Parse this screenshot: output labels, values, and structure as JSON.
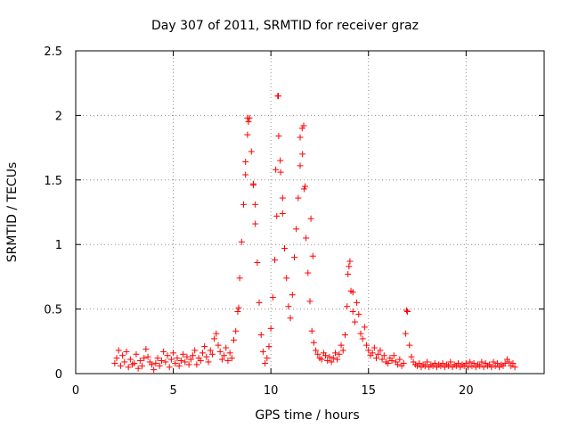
{
  "chart_data": {
    "type": "scatter",
    "title": "Day 307 of 2011, SRMTID for receiver graz",
    "xlabel": "GPS time / hours",
    "ylabel": "SRMTID / TECUs",
    "xlim": [
      0,
      24
    ],
    "ylim": [
      0,
      2.5
    ],
    "grid": true,
    "x_ticks": [
      0,
      5,
      10,
      15,
      20
    ],
    "y_ticks": [
      0,
      0.5,
      1,
      1.5,
      2,
      2.5
    ],
    "x_tick_labels": [
      "0",
      "5",
      "10",
      "15",
      "20"
    ],
    "y_tick_labels": [
      "0",
      "0.5",
      "1",
      "1.5",
      "2",
      "2.5"
    ],
    "marker": "+",
    "series": [
      {
        "name": "SRMTID",
        "color": "#ff0000",
        "points": [
          [
            2.0,
            0.08
          ],
          [
            2.1,
            0.12
          ],
          [
            2.2,
            0.18
          ],
          [
            2.3,
            0.06
          ],
          [
            2.4,
            0.14
          ],
          [
            2.5,
            0.09
          ],
          [
            2.6,
            0.17
          ],
          [
            2.7,
            0.05
          ],
          [
            2.8,
            0.11
          ],
          [
            2.9,
            0.07
          ],
          [
            3.0,
            0.08
          ],
          [
            3.1,
            0.15
          ],
          [
            3.2,
            0.04
          ],
          [
            3.3,
            0.1
          ],
          [
            3.4,
            0.06
          ],
          [
            3.5,
            0.12
          ],
          [
            3.6,
            0.19
          ],
          [
            3.7,
            0.13
          ],
          [
            3.8,
            0.09
          ],
          [
            3.9,
            0.07
          ],
          [
            4.0,
            0.03
          ],
          [
            4.1,
            0.08
          ],
          [
            4.2,
            0.12
          ],
          [
            4.3,
            0.06
          ],
          [
            4.4,
            0.1
          ],
          [
            4.5,
            0.17
          ],
          [
            4.6,
            0.09
          ],
          [
            4.7,
            0.14
          ],
          [
            4.8,
            0.05
          ],
          [
            4.9,
            0.11
          ],
          [
            5.0,
            0.16
          ],
          [
            5.1,
            0.08
          ],
          [
            5.2,
            0.12
          ],
          [
            5.3,
            0.06
          ],
          [
            5.4,
            0.1
          ],
          [
            5.5,
            0.15
          ],
          [
            5.6,
            0.09
          ],
          [
            5.7,
            0.13
          ],
          [
            5.8,
            0.07
          ],
          [
            5.9,
            0.11
          ],
          [
            6.0,
            0.14
          ],
          [
            6.1,
            0.18
          ],
          [
            6.2,
            0.07
          ],
          [
            6.3,
            0.12
          ],
          [
            6.4,
            0.1
          ],
          [
            6.5,
            0.16
          ],
          [
            6.6,
            0.21
          ],
          [
            6.7,
            0.13
          ],
          [
            6.8,
            0.09
          ],
          [
            6.9,
            0.18
          ],
          [
            7.0,
            0.15
          ],
          [
            7.1,
            0.27
          ],
          [
            7.2,
            0.31
          ],
          [
            7.3,
            0.22
          ],
          [
            7.4,
            0.17
          ],
          [
            7.5,
            0.11
          ],
          [
            7.6,
            0.14
          ],
          [
            7.7,
            0.2
          ],
          [
            7.8,
            0.1
          ],
          [
            7.9,
            0.16
          ],
          [
            8.0,
            0.12
          ],
          [
            8.1,
            0.26
          ],
          [
            8.2,
            0.33
          ],
          [
            8.3,
            0.48
          ],
          [
            8.4,
            0.74
          ],
          [
            8.5,
            1.02
          ],
          [
            8.6,
            1.31
          ],
          [
            8.7,
            1.54
          ],
          [
            8.8,
            1.85
          ],
          [
            8.9,
            1.98
          ],
          [
            9.0,
            1.72
          ],
          [
            9.1,
            1.46
          ],
          [
            9.2,
            1.16
          ],
          [
            9.3,
            0.86
          ],
          [
            9.4,
            0.55
          ],
          [
            9.5,
            0.3
          ],
          [
            9.6,
            0.17
          ],
          [
            9.7,
            0.08
          ],
          [
            9.8,
            0.12
          ],
          [
            9.9,
            0.21
          ],
          [
            10.0,
            0.35
          ],
          [
            10.1,
            0.59
          ],
          [
            10.2,
            0.88
          ],
          [
            10.3,
            1.22
          ],
          [
            10.35,
            2.15
          ],
          [
            10.4,
            1.84
          ],
          [
            10.5,
            1.56
          ],
          [
            10.6,
            1.24
          ],
          [
            10.7,
            0.97
          ],
          [
            10.8,
            0.74
          ],
          [
            10.9,
            0.52
          ],
          [
            11.0,
            0.43
          ],
          [
            11.1,
            0.61
          ],
          [
            11.2,
            0.9
          ],
          [
            11.3,
            1.12
          ],
          [
            11.4,
            1.36
          ],
          [
            11.5,
            1.61
          ],
          [
            11.6,
            1.9
          ],
          [
            11.7,
            1.43
          ],
          [
            11.8,
            1.05
          ],
          [
            11.9,
            0.78
          ],
          [
            12.0,
            0.56
          ],
          [
            12.1,
            0.33
          ],
          [
            12.2,
            0.24
          ],
          [
            12.3,
            0.18
          ],
          [
            12.4,
            0.15
          ],
          [
            12.5,
            0.12
          ],
          [
            12.6,
            0.11
          ],
          [
            12.7,
            0.16
          ],
          [
            12.8,
            0.14
          ],
          [
            12.9,
            0.1
          ],
          [
            13.0,
            0.13
          ],
          [
            13.1,
            0.09
          ],
          [
            13.2,
            0.12
          ],
          [
            13.3,
            0.16
          ],
          [
            13.4,
            0.11
          ],
          [
            13.5,
            0.15
          ],
          [
            13.6,
            0.22
          ],
          [
            13.7,
            0.18
          ],
          [
            13.8,
            0.3
          ],
          [
            13.9,
            0.52
          ],
          [
            14.0,
            0.83
          ],
          [
            14.1,
            0.64
          ],
          [
            14.2,
            0.48
          ],
          [
            14.3,
            0.4
          ],
          [
            14.4,
            0.55
          ],
          [
            14.5,
            0.46
          ],
          [
            14.6,
            0.31
          ],
          [
            14.7,
            0.27
          ],
          [
            14.8,
            0.36
          ],
          [
            14.9,
            0.22
          ],
          [
            15.0,
            0.18
          ],
          [
            15.1,
            0.14
          ],
          [
            15.2,
            0.16
          ],
          [
            15.3,
            0.2
          ],
          [
            15.4,
            0.12
          ],
          [
            15.5,
            0.15
          ],
          [
            15.6,
            0.18
          ],
          [
            15.7,
            0.11
          ],
          [
            15.8,
            0.14
          ],
          [
            15.9,
            0.09
          ],
          [
            16.0,
            0.08
          ],
          [
            16.1,
            0.12
          ],
          [
            16.2,
            0.1
          ],
          [
            16.3,
            0.14
          ],
          [
            16.4,
            0.09
          ],
          [
            16.5,
            0.07
          ],
          [
            16.6,
            0.11
          ],
          [
            16.7,
            0.06
          ],
          [
            16.8,
            0.08
          ],
          [
            16.9,
            0.31
          ],
          [
            17.0,
            0.48
          ],
          [
            17.1,
            0.22
          ],
          [
            17.2,
            0.13
          ],
          [
            17.3,
            0.09
          ],
          [
            17.4,
            0.07
          ],
          [
            17.5,
            0.06
          ],
          [
            17.6,
            0.08
          ],
          [
            17.7,
            0.05
          ],
          [
            17.8,
            0.07
          ],
          [
            17.9,
            0.06
          ],
          [
            18.0,
            0.09
          ],
          [
            18.1,
            0.05
          ],
          [
            18.2,
            0.07
          ],
          [
            18.3,
            0.06
          ],
          [
            18.4,
            0.08
          ],
          [
            18.5,
            0.05
          ],
          [
            18.6,
            0.07
          ],
          [
            18.7,
            0.06
          ],
          [
            18.8,
            0.08
          ],
          [
            18.9,
            0.05
          ],
          [
            19.0,
            0.07
          ],
          [
            19.1,
            0.06
          ],
          [
            19.2,
            0.09
          ],
          [
            19.3,
            0.05
          ],
          [
            19.4,
            0.07
          ],
          [
            19.5,
            0.06
          ],
          [
            19.6,
            0.08
          ],
          [
            19.7,
            0.05
          ],
          [
            19.8,
            0.07
          ],
          [
            19.9,
            0.06
          ],
          [
            20.0,
            0.08
          ],
          [
            20.1,
            0.05
          ],
          [
            20.2,
            0.09
          ],
          [
            20.3,
            0.06
          ],
          [
            20.4,
            0.08
          ],
          [
            20.5,
            0.05
          ],
          [
            20.6,
            0.07
          ],
          [
            20.7,
            0.06
          ],
          [
            20.8,
            0.09
          ],
          [
            20.9,
            0.05
          ],
          [
            21.0,
            0.08
          ],
          [
            21.1,
            0.06
          ],
          [
            21.2,
            0.07
          ],
          [
            21.3,
            0.05
          ],
          [
            21.4,
            0.09
          ],
          [
            21.5,
            0.06
          ],
          [
            21.6,
            0.08
          ],
          [
            21.7,
            0.05
          ],
          [
            21.8,
            0.07
          ],
          [
            21.9,
            0.06
          ],
          [
            22.0,
            0.08
          ],
          [
            22.1,
            0.11
          ],
          [
            22.2,
            0.09
          ],
          [
            22.3,
            0.06
          ],
          [
            22.4,
            0.08
          ],
          [
            22.5,
            0.05
          ],
          [
            8.8,
            1.98
          ],
          [
            8.85,
            1.95
          ],
          [
            10.38,
            2.15
          ],
          [
            11.68,
            1.92
          ],
          [
            14.05,
            0.87
          ],
          [
            14.2,
            0.63
          ],
          [
            16.95,
            0.49
          ],
          [
            13.95,
            0.77
          ],
          [
            8.35,
            0.51
          ],
          [
            8.7,
            1.64
          ],
          [
            9.1,
            1.47
          ],
          [
            9.2,
            1.31
          ],
          [
            10.25,
            1.58
          ],
          [
            10.48,
            1.65
          ],
          [
            10.6,
            1.36
          ],
          [
            11.5,
            1.83
          ],
          [
            11.62,
            1.7
          ],
          [
            11.75,
            1.45
          ],
          [
            12.05,
            1.2
          ],
          [
            12.15,
            0.91
          ]
        ]
      }
    ]
  }
}
